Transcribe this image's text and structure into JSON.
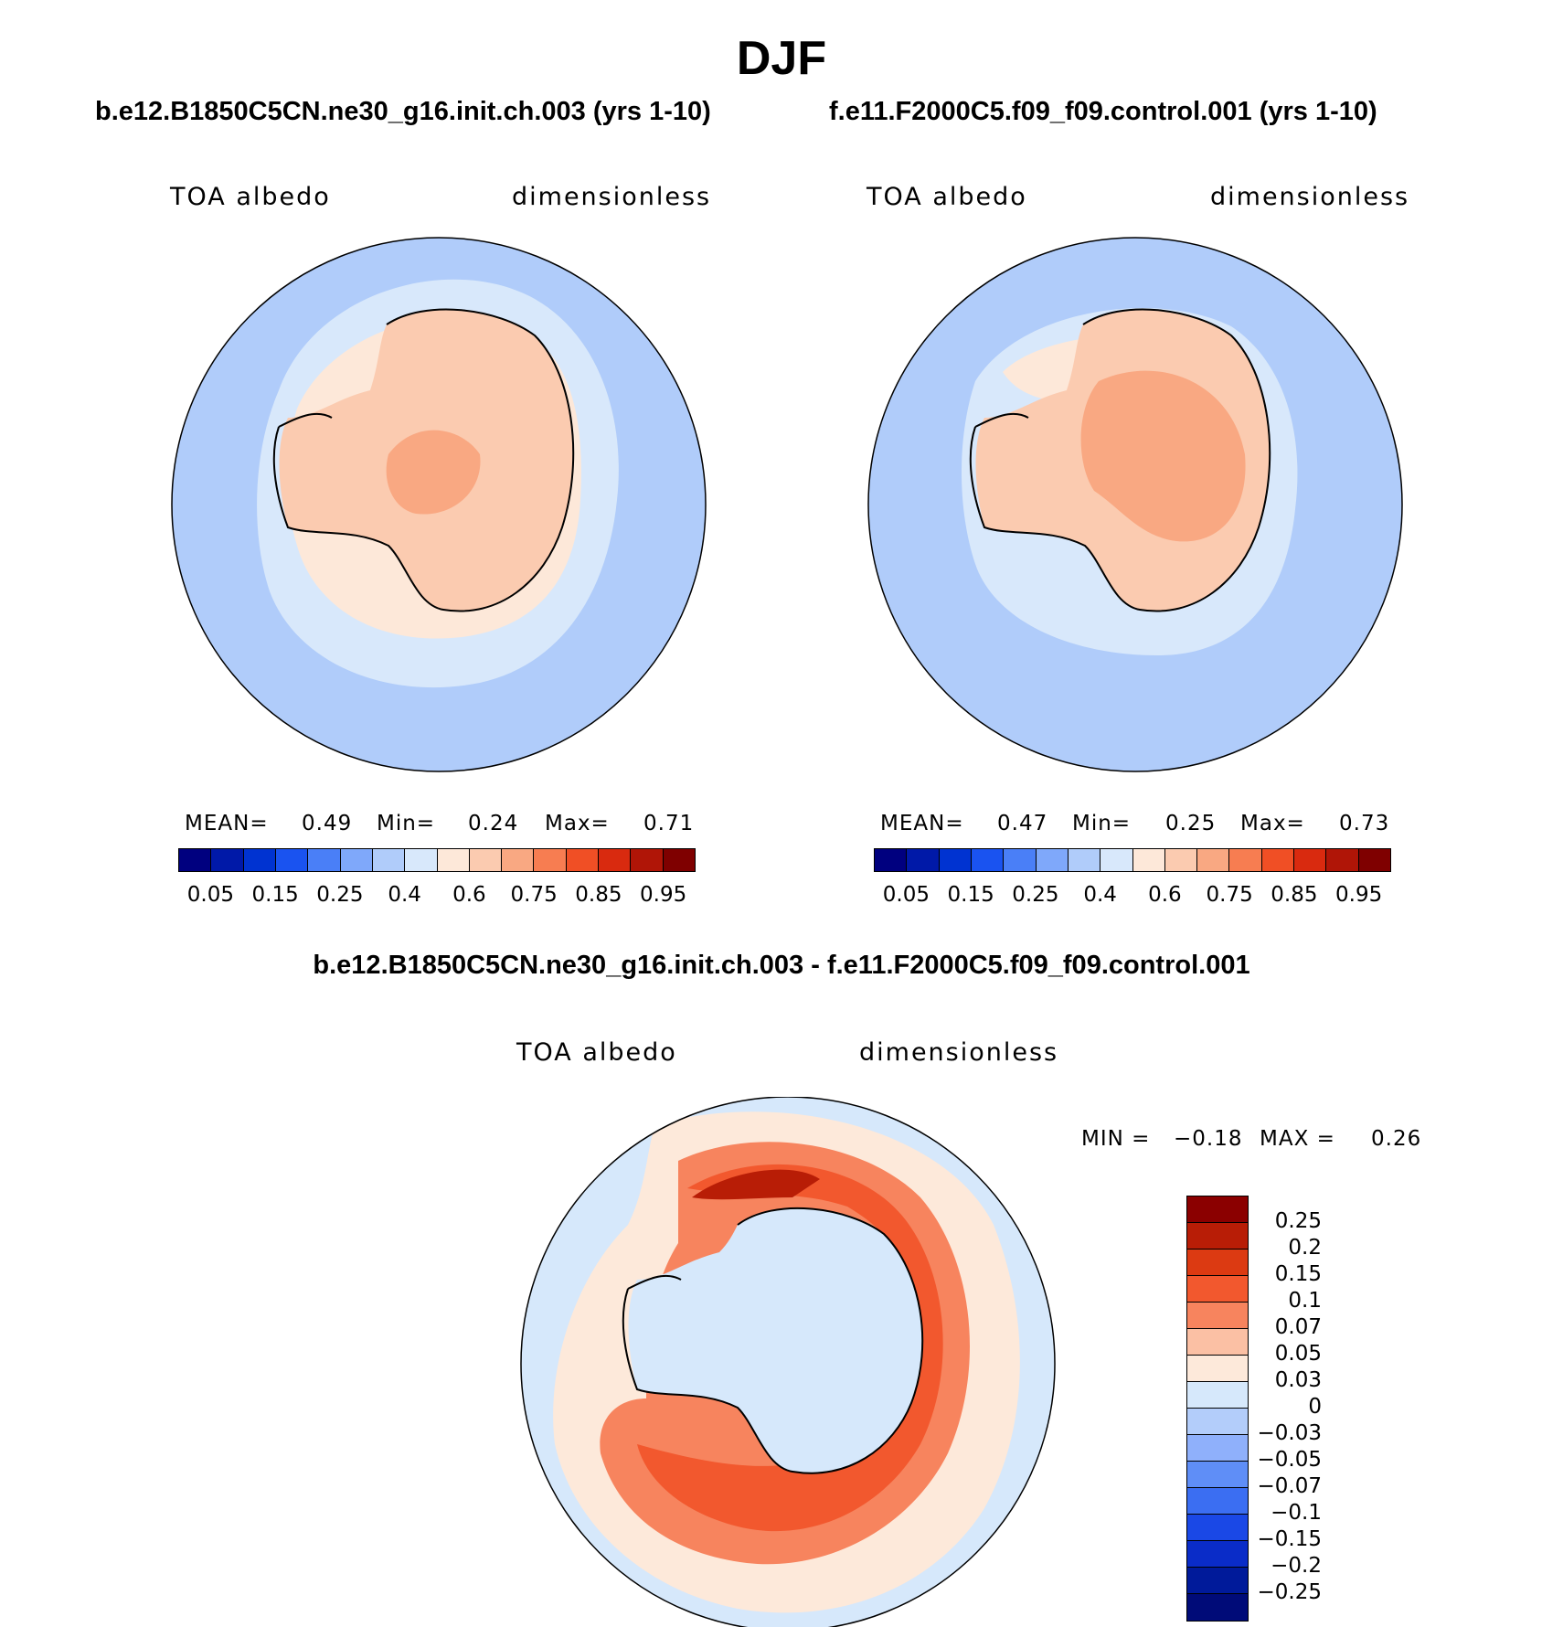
{
  "title": "DJF",
  "panels": [
    {
      "id": "left",
      "case_title": "b.e12.B1850C5CN.ne30_g16.init.ch.003 (yrs 1-10)",
      "variable_label": "TOA albedo",
      "units_label": "dimensionless",
      "stats": {
        "mean_label": "MEAN=",
        "mean": "0.49",
        "min_label": "Min=",
        "min": "0.24",
        "max_label": "Max=",
        "max": "0.71"
      }
    },
    {
      "id": "right",
      "case_title": "f.e11.F2000C5.f09_f09.control.001 (yrs 1-10)",
      "variable_label": "TOA albedo",
      "units_label": "dimensionless",
      "stats": {
        "mean_label": "MEAN=",
        "mean": "0.47",
        "min_label": "Min=",
        "min": "0.25",
        "max_label": "Max=",
        "max": "0.73"
      }
    }
  ],
  "colorbar": {
    "colors": [
      "#00007f",
      "#0019a8",
      "#0033d1",
      "#1a53f0",
      "#4a7ff7",
      "#7fa8fa",
      "#b0ccfa",
      "#d8e8fb",
      "#fde8d9",
      "#fbcbb0",
      "#f9a882",
      "#f77d51",
      "#f04f25",
      "#d92a0f",
      "#b01507",
      "#7f0000"
    ],
    "tick_labels": [
      "0.05",
      "0.15",
      "0.25",
      "0.4",
      "0.6",
      "0.75",
      "0.85",
      "0.95"
    ]
  },
  "diff": {
    "title": "b.e12.B1850C5CN.ne30_g16.init.ch.003 - f.e11.F2000C5.f09_f09.control.001",
    "variable_label": "TOA albedo",
    "units_label": "dimensionless",
    "stats": {
      "min_label": "MIN =",
      "min": "−0.18",
      "max_label": "MAX =",
      "max": "0.26"
    },
    "colorbar": {
      "colors": [
        "#8b0000",
        "#b81d06",
        "#dc3a12",
        "#f2582e",
        "#f7845e",
        "#fbc0a4",
        "#fde9da",
        "#d6e8fb",
        "#b3cdfa",
        "#8fb0fb",
        "#5f8ef7",
        "#3b6ef2",
        "#1a48e6",
        "#0a2cc8",
        "#001a9a",
        "#000b78"
      ],
      "tick_labels": [
        "0.25",
        "0.2",
        "0.15",
        "0.1",
        "0.07",
        "0.05",
        "0.03",
        "0",
        "−0.03",
        "−0.05",
        "−0.07",
        "−0.1",
        "−0.15",
        "−0.2",
        "−0.25"
      ]
    }
  }
}
